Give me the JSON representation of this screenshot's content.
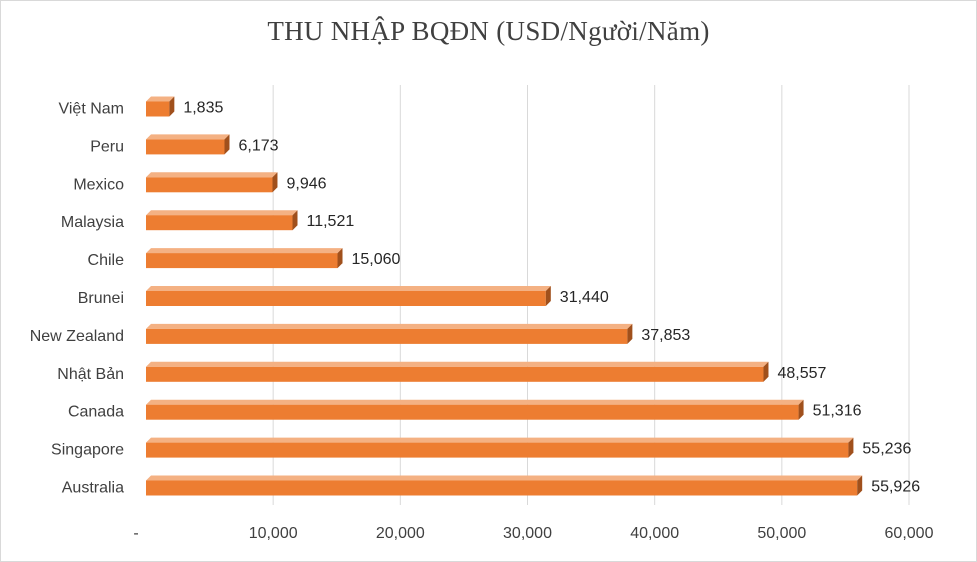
{
  "chart_data": {
    "type": "bar",
    "orientation": "horizontal",
    "title": "THU NHẬP BQĐN (USD/Người/Năm)",
    "xlabel": "",
    "ylabel": "",
    "categories": [
      "Việt Nam",
      "Peru",
      "Mexico",
      "Malaysia",
      "Chile",
      "Brunei",
      "New Zealand",
      "Nhật Bản",
      "Canada",
      "Singapore",
      "Australia"
    ],
    "values": [
      1835,
      6173,
      9946,
      11521,
      15060,
      31440,
      37853,
      48557,
      51316,
      55236,
      55926
    ],
    "value_labels": [
      "1,835",
      "6,173",
      "9,946",
      "11,521",
      "15,060",
      "31,440",
      "37,853",
      "48,557",
      "51,316",
      "55,236",
      "55,926"
    ],
    "xlim": [
      0,
      60000
    ],
    "x_ticks": [
      0,
      10000,
      20000,
      30000,
      40000,
      50000,
      60000
    ],
    "x_tick_labels": [
      "-",
      "10,000",
      "20,000",
      "30,000",
      "40,000",
      "50,000",
      "60,000"
    ],
    "grid": "vertical",
    "legend": "none",
    "colors": {
      "bar_front": "#ED7D31",
      "bar_top": "#F4B183",
      "bar_side": "#A0501C",
      "gridline": "#d9d9d9",
      "text": "#404040"
    }
  }
}
